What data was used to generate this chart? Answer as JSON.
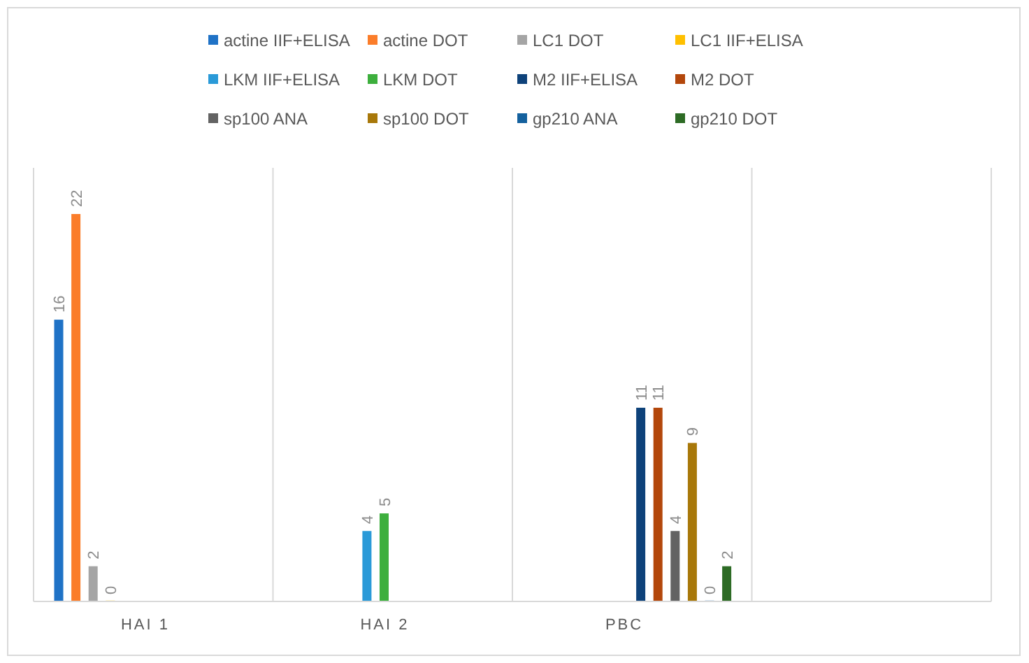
{
  "chart_data": {
    "type": "bar",
    "categories": [
      "HAI 1",
      "HAI 2",
      "PBC",
      null
    ],
    "series": [
      {
        "name": "actine IIF+ELISA",
        "color": "#1f72c6",
        "values": [
          16,
          null,
          null,
          null
        ]
      },
      {
        "name": "actine DOT",
        "color": "#fb7d2a",
        "values": [
          22,
          null,
          null,
          null
        ]
      },
      {
        "name": "LC1 DOT",
        "color": "#a5a5a5",
        "values": [
          2,
          null,
          null,
          null
        ]
      },
      {
        "name": "LC1 IIF+ELISA",
        "color": "#ffc000",
        "values": [
          0,
          null,
          null,
          null
        ]
      },
      {
        "name": "LKM IIF+ELISA",
        "color": "#2a9ad8",
        "values": [
          null,
          4,
          null,
          null
        ]
      },
      {
        "name": "LKM DOT",
        "color": "#3daf3d",
        "values": [
          null,
          5,
          null,
          null
        ]
      },
      {
        "name": "M2 IIF+ELISA",
        "color": "#0e427a",
        "values": [
          null,
          null,
          11,
          null
        ]
      },
      {
        "name": "M2 DOT",
        "color": "#b3470b",
        "values": [
          null,
          null,
          11,
          null
        ]
      },
      {
        "name": "sp100 ANA",
        "color": "#636363",
        "values": [
          null,
          null,
          4,
          null
        ]
      },
      {
        "name": "sp100 DOT",
        "color": "#a8780a",
        "values": [
          null,
          null,
          9,
          null
        ]
      },
      {
        "name": "gp210 ANA",
        "color": "#14619e",
        "values": [
          null,
          null,
          0,
          null
        ]
      },
      {
        "name": "gp210 DOT",
        "color": "#2d6b25",
        "values": [
          null,
          null,
          2,
          null
        ]
      }
    ],
    "data_labels": true,
    "grid": "x",
    "legend": "top",
    "tick_labels": "x"
  }
}
